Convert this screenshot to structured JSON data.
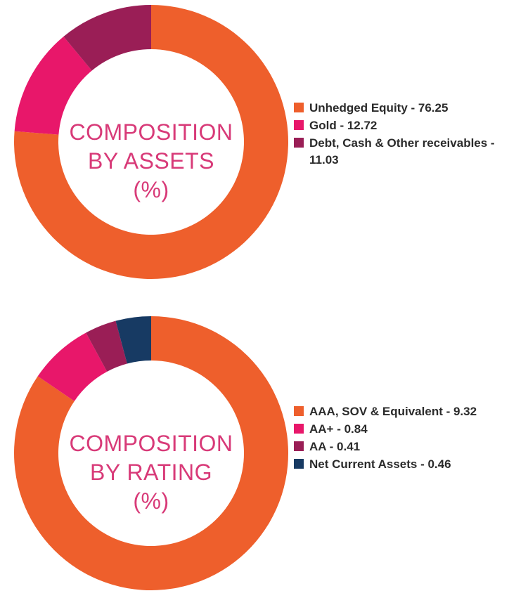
{
  "chart_data": [
    {
      "type": "pie",
      "donut": true,
      "title_lines": [
        "COMPOSITION",
        "BY ASSETS",
        "(%)"
      ],
      "categories": [
        "Unhedged Equity",
        "Gold",
        "Debt, Cash & Other receivables"
      ],
      "values": [
        76.25,
        12.72,
        11.03
      ],
      "colors": [
        "#ee5f2c",
        "#e8176a",
        "#9a1e56"
      ],
      "legend_labels": [
        "Unhedged Equity - 76.25",
        "Gold - 12.72",
        "Debt, Cash & Other receivables - 11.03"
      ],
      "legend_position": "right"
    },
    {
      "type": "pie",
      "donut": true,
      "title_lines": [
        "COMPOSITION",
        "BY RATING",
        "(%)"
      ],
      "categories": [
        "AAA, SOV & Equivalent",
        "AA+",
        "AA",
        "Net Current Assets"
      ],
      "values": [
        9.32,
        0.84,
        0.41,
        0.46
      ],
      "colors": [
        "#ee5f2c",
        "#e8176a",
        "#9a1e56",
        "#173a63"
      ],
      "legend_labels": [
        "AAA, SOV & Equivalent - 9.32",
        "AA+ - 0.84",
        "AA - 0.41",
        "Net Current Assets - 0.46"
      ],
      "legend_position": "right"
    }
  ]
}
